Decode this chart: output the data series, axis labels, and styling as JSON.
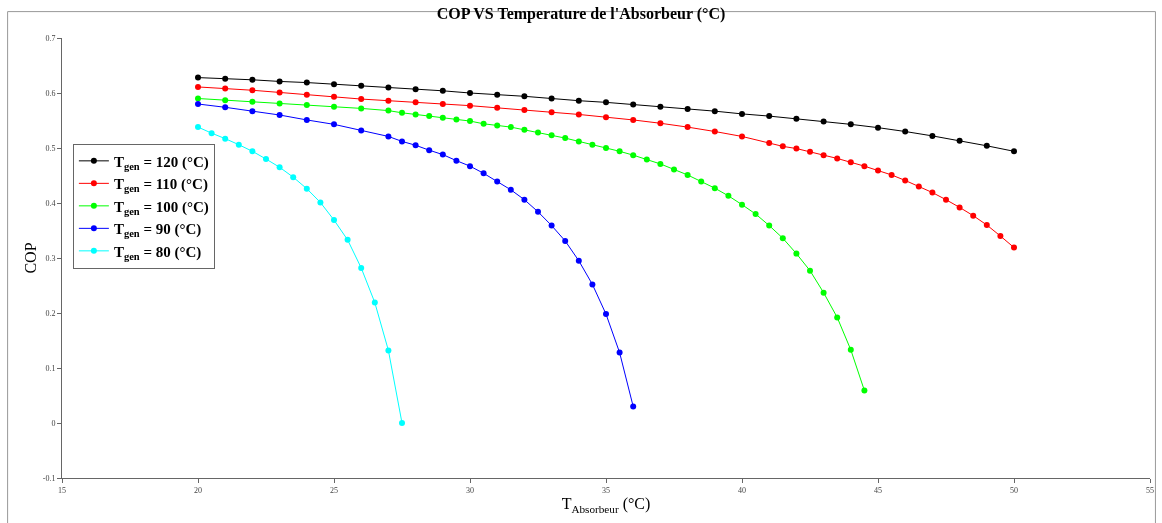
{
  "chart_data": {
    "type": "line",
    "title": "COP VS Temperature de l'Absorbeur (°C)",
    "xlabel": "T$_{Absorbeur}$ (°C)",
    "ylabel": "COP",
    "xlim": [
      15,
      55
    ],
    "xticks": [
      15,
      20,
      25,
      30,
      35,
      40,
      45,
      50,
      55
    ],
    "ylim": [
      -0.1,
      0.7
    ],
    "yticks": [
      -0.1,
      0,
      0.1,
      0.2,
      0.3,
      0.4,
      0.5,
      0.6,
      0.7
    ],
    "grid": false,
    "legend": "top left",
    "marker": "circle",
    "line_style": "solid",
    "series": [
      {
        "name": "T$_{gen}$ = 120 (°C)",
        "color": "#000000",
        "x": [
          20,
          21,
          22,
          23,
          24,
          25,
          26,
          27,
          28,
          29,
          30,
          31,
          32,
          33,
          34,
          35,
          36,
          37,
          38,
          39,
          40,
          41,
          42,
          43,
          44,
          45,
          46,
          47,
          48,
          49,
          50
        ],
        "values": [
          0.628,
          0.626,
          0.624,
          0.621,
          0.619,
          0.616,
          0.613,
          0.61,
          0.607,
          0.604,
          0.6,
          0.597,
          0.594,
          0.59,
          0.586,
          0.583,
          0.579,
          0.575,
          0.571,
          0.567,
          0.562,
          0.558,
          0.553,
          0.548,
          0.543,
          0.537,
          0.53,
          0.522,
          0.513,
          0.504,
          0.494
        ]
      },
      {
        "name": "T$_{gen}$ = 110 (°C)",
        "color": "#ff0000",
        "x": [
          20,
          21,
          22,
          23,
          24,
          25,
          26,
          27,
          28,
          29,
          30,
          31,
          32,
          33,
          34,
          35,
          36,
          37,
          38,
          39,
          40,
          41,
          41.5,
          42,
          42.5,
          43,
          43.5,
          44,
          44.5,
          45,
          45.5,
          46,
          46.5,
          47,
          47.5,
          48,
          48.5,
          49,
          49.5,
          50
        ],
        "values": [
          0.611,
          0.608,
          0.605,
          0.601,
          0.597,
          0.593,
          0.589,
          0.586,
          0.583,
          0.58,
          0.577,
          0.573,
          0.569,
          0.565,
          0.561,
          0.556,
          0.551,
          0.545,
          0.538,
          0.53,
          0.521,
          0.509,
          0.503,
          0.499,
          0.493,
          0.487,
          0.481,
          0.474,
          0.467,
          0.459,
          0.451,
          0.441,
          0.43,
          0.419,
          0.406,
          0.392,
          0.377,
          0.36,
          0.34,
          0.319
        ]
      },
      {
        "name": "T$_{gen}$ = 100 (°C)",
        "color": "#00ff00",
        "x": [
          20,
          21,
          22,
          23,
          24,
          25,
          26,
          27,
          27.5,
          28,
          28.5,
          29,
          29.5,
          30,
          30.5,
          31,
          31.5,
          32,
          32.5,
          33,
          33.5,
          34,
          34.5,
          35,
          35.5,
          36,
          36.5,
          37,
          37.5,
          38,
          38.5,
          39,
          39.5,
          40,
          40.5,
          41,
          41.5,
          42,
          42.5,
          43,
          43.5,
          44,
          44.5
        ],
        "values": [
          0.59,
          0.587,
          0.584,
          0.581,
          0.578,
          0.575,
          0.572,
          0.568,
          0.564,
          0.561,
          0.558,
          0.555,
          0.552,
          0.549,
          0.544,
          0.541,
          0.538,
          0.533,
          0.528,
          0.523,
          0.518,
          0.512,
          0.506,
          0.5,
          0.494,
          0.487,
          0.479,
          0.471,
          0.461,
          0.451,
          0.439,
          0.427,
          0.413,
          0.397,
          0.38,
          0.359,
          0.336,
          0.308,
          0.277,
          0.237,
          0.192,
          0.133,
          0.059
        ]
      },
      {
        "name": "T$_{gen}$ = 90 (°C)",
        "color": "#0000ff",
        "x": [
          20,
          21,
          22,
          23,
          24,
          25,
          26,
          27,
          27.5,
          28,
          28.5,
          29,
          29.5,
          30,
          30.5,
          31,
          31.5,
          32,
          32.5,
          33,
          33.5,
          34,
          34.5,
          35,
          35.5,
          36
        ],
        "values": [
          0.58,
          0.574,
          0.567,
          0.56,
          0.551,
          0.543,
          0.532,
          0.521,
          0.512,
          0.505,
          0.496,
          0.488,
          0.477,
          0.467,
          0.454,
          0.439,
          0.424,
          0.406,
          0.384,
          0.359,
          0.331,
          0.295,
          0.252,
          0.198,
          0.128,
          0.03
        ]
      },
      {
        "name": "T$_{gen}$ = 80 (°C)",
        "color": "#00ffff",
        "x": [
          20,
          20.5,
          21,
          21.5,
          22,
          22.5,
          23,
          23.5,
          24,
          24.5,
          25,
          25.5,
          26,
          26.5,
          27,
          27.5
        ],
        "values": [
          0.538,
          0.527,
          0.517,
          0.506,
          0.494,
          0.48,
          0.465,
          0.447,
          0.426,
          0.401,
          0.369,
          0.333,
          0.282,
          0.219,
          0.132,
          0.0
        ]
      }
    ]
  }
}
